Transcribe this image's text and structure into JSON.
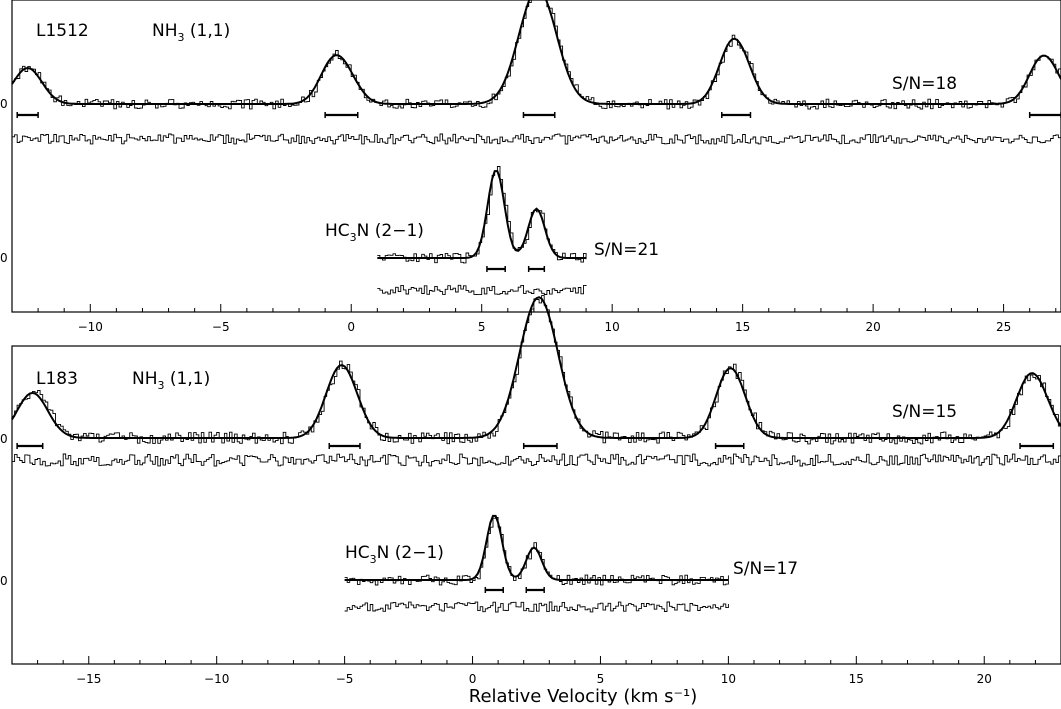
{
  "chart_data": [
    {
      "type": "line",
      "panel": "top",
      "source": "L1512",
      "xlim": [
        -13,
        27.2
      ],
      "xticks": [
        -10,
        -5,
        0,
        5,
        10,
        15,
        20,
        25
      ],
      "y_zero_label": "0",
      "series": [
        {
          "name_main": "NH",
          "name_sub": "3",
          "name_rest": " (1,1)",
          "snr": "S/N=18",
          "components": [
            {
              "v": -12.4,
              "a": 0.5,
              "w": 0.55
            },
            {
              "v": -0.75,
              "a": 0.5,
              "w": 0.5
            },
            {
              "v": -0.15,
              "a": 0.3,
              "w": 0.5
            },
            {
              "v": 6.9,
              "a": 0.95,
              "w": 0.65
            },
            {
              "v": 7.45,
              "a": 0.8,
              "w": 0.65
            },
            {
              "v": 14.5,
              "a": 0.62,
              "w": 0.5
            },
            {
              "v": 15.0,
              "a": 0.4,
              "w": 0.5
            },
            {
              "v": 26.4,
              "a": 0.5,
              "w": 0.5
            },
            {
              "v": 26.9,
              "a": 0.25,
              "w": 0.5
            }
          ],
          "bars": [
            [
              -12.8,
              -12.0
            ],
            [
              -1.0,
              0.25
            ],
            [
              6.6,
              7.8
            ],
            [
              14.2,
              15.3
            ],
            [
              26.0,
              27.2
            ]
          ],
          "vrange": [
            -13,
            27.2
          ]
        },
        {
          "name_main": "HC",
          "name_sub": "3",
          "name_rest": "N  (2−1)",
          "snr": "S/N=21",
          "components": [
            {
              "v": 5.55,
              "a": 1.0,
              "w": 0.32
            },
            {
              "v": 7.1,
              "a": 0.56,
              "w": 0.32
            }
          ],
          "bars": [
            [
              5.2,
              5.9
            ],
            [
              6.8,
              7.4
            ]
          ],
          "vrange": [
            1.0,
            9.0
          ]
        }
      ]
    },
    {
      "type": "line",
      "panel": "bottom",
      "source": "L183",
      "xlim": [
        -18,
        23
      ],
      "xticks": [
        -15,
        -10,
        -5,
        0,
        5,
        10,
        15,
        20
      ],
      "y_zero_label": "0",
      "xlabel": "Relative Velocity (km s⁻¹)",
      "series": [
        {
          "name_main": "NH",
          "name_sub": "3",
          "name_rest": " (1,1)",
          "snr": "S/N=15",
          "components": [
            {
              "v": -17.2,
              "a": 0.55,
              "w": 0.6
            },
            {
              "v": -5.3,
              "a": 0.6,
              "w": 0.55
            },
            {
              "v": -4.8,
              "a": 0.38,
              "w": 0.55
            },
            {
              "v": 2.35,
              "a": 0.95,
              "w": 0.7
            },
            {
              "v": 2.85,
              "a": 0.88,
              "w": 0.7
            },
            {
              "v": 9.9,
              "a": 0.58,
              "w": 0.5
            },
            {
              "v": 10.4,
              "a": 0.38,
              "w": 0.5
            },
            {
              "v": 21.7,
              "a": 0.55,
              "w": 0.55
            },
            {
              "v": 22.2,
              "a": 0.32,
              "w": 0.55
            }
          ],
          "bars": [
            [
              -17.8,
              -16.8
            ],
            [
              -5.6,
              -4.4
            ],
            [
              2.0,
              3.3
            ],
            [
              9.5,
              10.6
            ],
            [
              21.4,
              22.7
            ]
          ],
          "vrange": [
            -18,
            23
          ]
        },
        {
          "name_main": "HC",
          "name_sub": "3",
          "name_rest": "N  (2−1)",
          "snr": "S/N=17",
          "components": [
            {
              "v": 0.85,
              "a": 1.0,
              "w": 0.3
            },
            {
              "v": 2.4,
              "a": 0.5,
              "w": 0.3
            }
          ],
          "bars": [
            [
              0.5,
              1.2
            ],
            [
              2.1,
              2.8
            ]
          ],
          "vrange": [
            -5.0,
            10.0
          ]
        }
      ]
    }
  ]
}
